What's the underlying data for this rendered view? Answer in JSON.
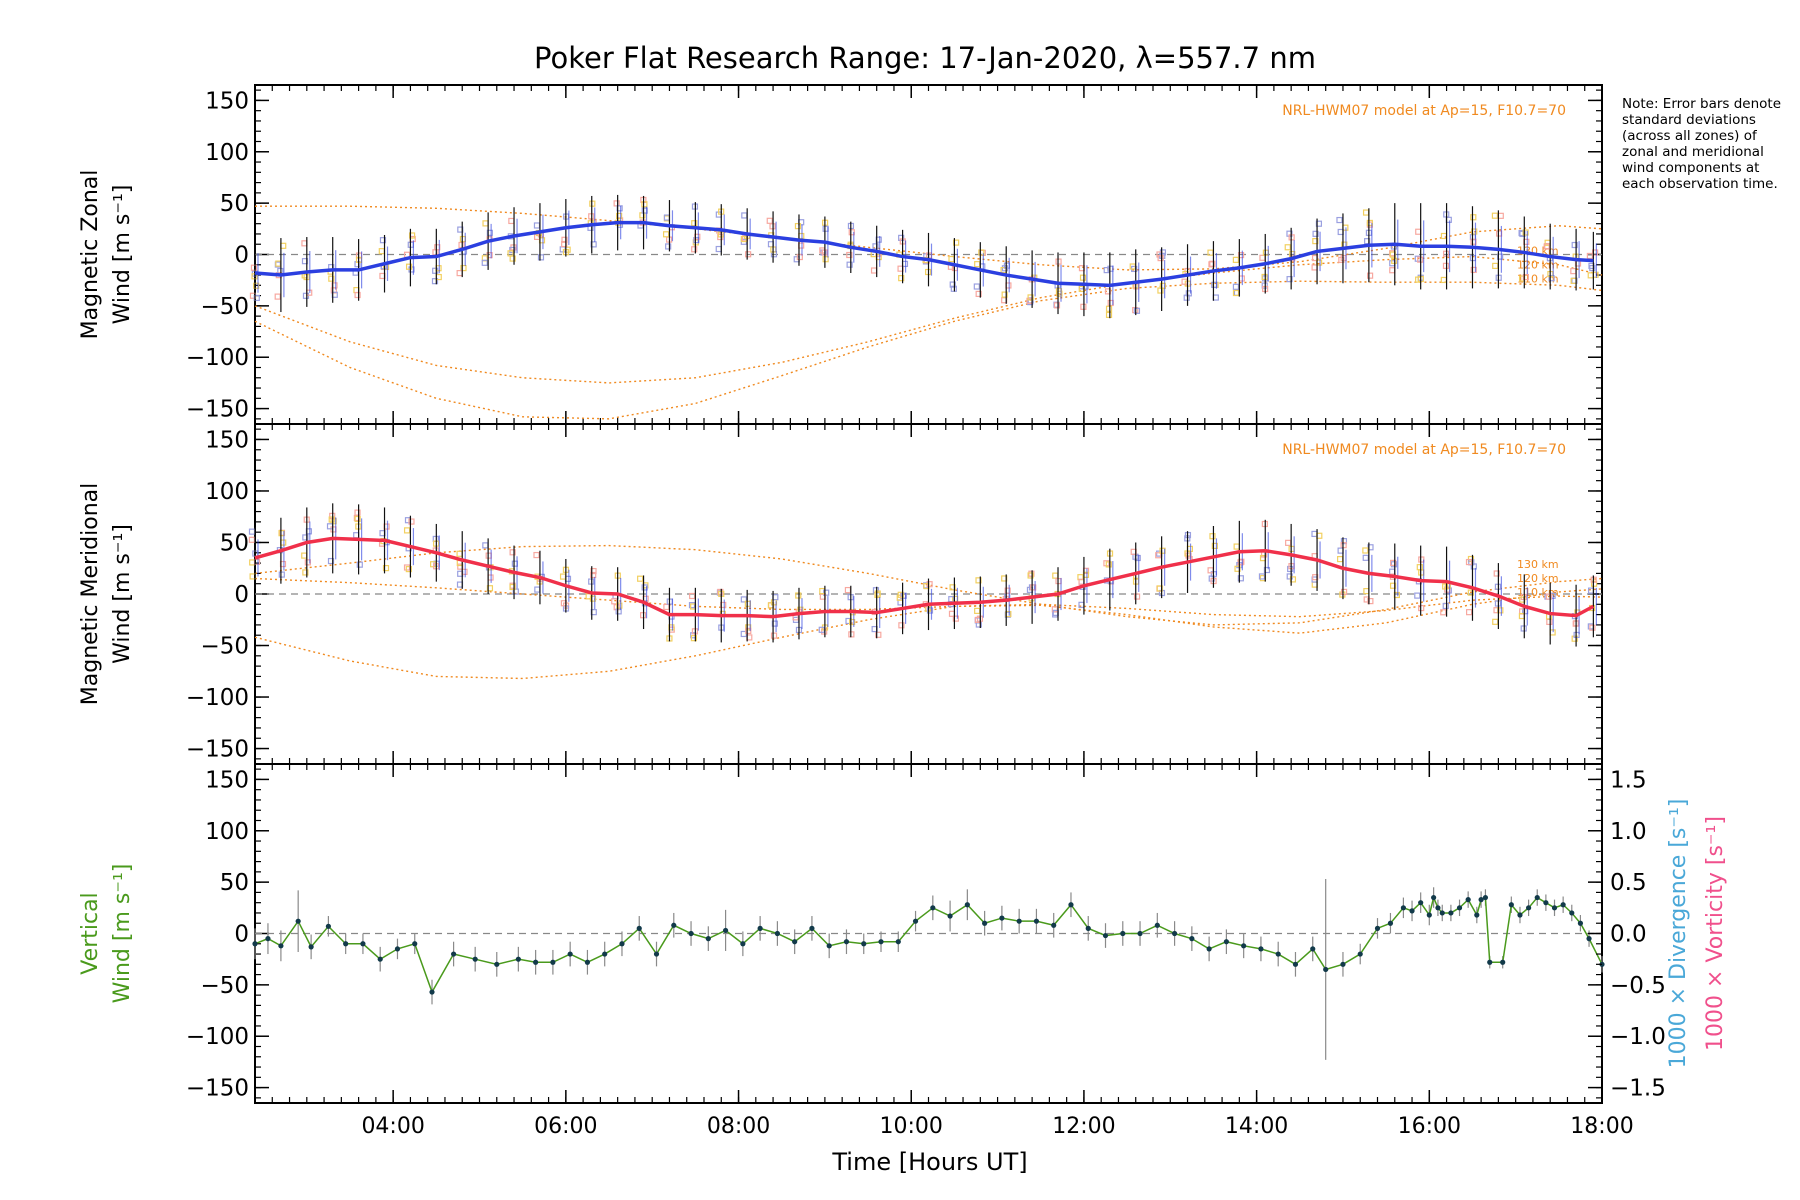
{
  "title": "Poker Flat Research Range: 17-Jan-2020, λ=557.7 nm",
  "note": "Note: Error bars denote standard deviations (across all zones) of zonal and meridional wind components at each observation time.",
  "xlabel": "Time [Hours UT]",
  "colors": {
    "zonal_mean": "#2b3fe0",
    "meridional_mean": "#f0304a",
    "vertical": "#4a9a1c",
    "model": "#f08a20",
    "samples": "#9aa0e0",
    "samples_warm": "#f7a8a0",
    "samples_yellow": "#f2d060",
    "divergence_label": "#4aa8d8",
    "vorticity_label": "#f0508c",
    "zero_line": "#888888",
    "error_bar": "#111111"
  },
  "chart_data": [
    {
      "type": "line",
      "panel": "zonal",
      "ylabel_line1": "Magnetic Zonal",
      "ylabel_line2": "Wind [m s⁻¹]",
      "model_label": "NRL-HWM07 model at Ap=15, F10.7=70",
      "model_altitude_labels": [
        "130 km",
        "120 km",
        "110 km"
      ],
      "xlim": [
        2.4,
        18.0
      ],
      "ylim": [
        -165,
        165
      ],
      "yticks": [
        -150,
        -100,
        -50,
        0,
        50,
        100,
        150
      ],
      "xticks": [
        4,
        6,
        8,
        10,
        12,
        14,
        16,
        18
      ],
      "xtick_labels": [
        "04:00",
        "06:00",
        "08:00",
        "10:00",
        "12:00",
        "14:00",
        "16:00",
        "18:00"
      ],
      "series": [
        {
          "role": "mean",
          "x": [
            2.4,
            2.7,
            3.0,
            3.3,
            3.6,
            3.9,
            4.2,
            4.5,
            4.8,
            5.1,
            5.4,
            5.7,
            6.0,
            6.3,
            6.6,
            6.9,
            7.2,
            7.5,
            7.8,
            8.1,
            8.4,
            8.7,
            9.0,
            9.3,
            9.6,
            9.9,
            10.2,
            10.5,
            10.8,
            11.1,
            11.4,
            11.7,
            12.0,
            12.3,
            12.6,
            12.9,
            13.2,
            13.5,
            13.8,
            14.1,
            14.4,
            14.7,
            15.0,
            15.3,
            15.6,
            15.9,
            16.2,
            16.5,
            16.8,
            17.1,
            17.4,
            17.7,
            17.9
          ],
          "y": [
            -18,
            -20,
            -17,
            -15,
            -15,
            -9,
            -3,
            -2,
            5,
            13,
            18,
            22,
            26,
            29,
            31,
            31,
            28,
            26,
            24,
            20,
            17,
            14,
            12,
            7,
            3,
            -2,
            -5,
            -10,
            -15,
            -20,
            -24,
            -28,
            -29,
            -30,
            -27,
            -24,
            -20,
            -16,
            -13,
            -9,
            -4,
            3,
            6,
            9,
            10,
            8,
            8,
            7,
            5,
            2,
            -2,
            -5,
            -6
          ],
          "err": [
            32,
            36,
            34,
            32,
            30,
            28,
            28,
            27,
            27,
            28,
            28,
            28,
            28,
            28,
            27,
            26,
            25,
            25,
            25,
            25,
            25,
            25,
            25,
            25,
            25,
            26,
            26,
            26,
            27,
            28,
            28,
            30,
            31,
            32,
            32,
            31,
            30,
            29,
            28,
            29,
            30,
            32,
            34,
            36,
            40,
            42,
            42,
            40,
            38,
            35,
            32,
            30,
            28
          ]
        },
        {
          "role": "model",
          "name": "130 km",
          "x": [
            2.4,
            3.5,
            4.5,
            5.5,
            6.5,
            7.5,
            8.5,
            9.5,
            10.5,
            11.5,
            12.5,
            13.5,
            14.5,
            15.5,
            16.5,
            17.5,
            18.0
          ],
          "y": [
            47,
            47,
            45,
            40,
            33,
            25,
            16,
            7,
            -2,
            -10,
            -15,
            -14,
            -7,
            6,
            22,
            28,
            25
          ]
        },
        {
          "role": "model",
          "name": "120 km",
          "x": [
            2.4,
            3.5,
            4.5,
            5.5,
            6.5,
            7.5,
            8.5,
            9.5,
            10.5,
            11.5,
            12.5,
            13.5,
            14.5,
            15.5,
            16.5,
            17.5,
            18.0
          ],
          "y": [
            -50,
            -85,
            -108,
            -120,
            -125,
            -120,
            -105,
            -85,
            -62,
            -42,
            -28,
            -18,
            -10,
            -5,
            -2,
            -10,
            -20
          ]
        },
        {
          "role": "model",
          "name": "110 km",
          "x": [
            2.4,
            3.5,
            4.5,
            5.5,
            6.5,
            7.5,
            8.5,
            9.5,
            10.5,
            11.5,
            12.5,
            13.5,
            14.5,
            15.5,
            16.5,
            17.5,
            18.0
          ],
          "y": [
            -65,
            -110,
            -140,
            -158,
            -160,
            -145,
            -118,
            -90,
            -65,
            -45,
            -33,
            -28,
            -26,
            -27,
            -27,
            -30,
            -35
          ]
        }
      ]
    },
    {
      "type": "line",
      "panel": "meridional",
      "ylabel_line1": "Magnetic Meridional",
      "ylabel_line2": "Wind [m s⁻¹]",
      "model_label": "NRL-HWM07 model at Ap=15, F10.7=70",
      "model_altitude_labels": [
        "130 km",
        "120 km",
        "110 km"
      ],
      "xlim": [
        2.4,
        18.0
      ],
      "ylim": [
        -165,
        165
      ],
      "yticks": [
        -150,
        -100,
        -50,
        0,
        50,
        100,
        150
      ],
      "xticks": [
        4,
        6,
        8,
        10,
        12,
        14,
        16,
        18
      ],
      "xtick_labels": [
        "04:00",
        "06:00",
        "08:00",
        "10:00",
        "12:00",
        "14:00",
        "16:00",
        "18:00"
      ],
      "series": [
        {
          "role": "mean",
          "x": [
            2.4,
            2.7,
            3.0,
            3.3,
            3.6,
            3.9,
            4.2,
            4.5,
            4.8,
            5.1,
            5.4,
            5.7,
            6.0,
            6.3,
            6.6,
            6.9,
            7.2,
            7.5,
            7.8,
            8.1,
            8.4,
            8.7,
            9.0,
            9.3,
            9.6,
            9.9,
            10.2,
            10.5,
            10.8,
            11.1,
            11.4,
            11.7,
            12.0,
            12.3,
            12.6,
            12.9,
            13.2,
            13.5,
            13.8,
            14.1,
            14.4,
            14.7,
            15.0,
            15.3,
            15.6,
            15.9,
            16.2,
            16.5,
            16.8,
            17.1,
            17.4,
            17.7,
            17.9
          ],
          "y": [
            35,
            42,
            50,
            54,
            53,
            52,
            46,
            40,
            33,
            27,
            21,
            16,
            8,
            1,
            0,
            -8,
            -20,
            -20,
            -21,
            -21,
            -22,
            -19,
            -17,
            -17,
            -18,
            -14,
            -10,
            -9,
            -8,
            -6,
            -3,
            0,
            8,
            14,
            20,
            26,
            31,
            36,
            41,
            42,
            38,
            33,
            25,
            20,
            17,
            13,
            12,
            6,
            -2,
            -12,
            -19,
            -21,
            -12
          ],
          "err": [
            30,
            32,
            34,
            34,
            34,
            32,
            30,
            28,
            28,
            27,
            26,
            26,
            26,
            26,
            26,
            26,
            26,
            26,
            26,
            25,
            25,
            25,
            25,
            25,
            25,
            25,
            25,
            25,
            25,
            25,
            26,
            26,
            28,
            30,
            30,
            30,
            30,
            30,
            30,
            30,
            30,
            30,
            30,
            30,
            32,
            34,
            34,
            32,
            32,
            31,
            30,
            30,
            30
          ]
        },
        {
          "role": "model",
          "name": "130 km",
          "x": [
            2.4,
            3.5,
            4.5,
            5.5,
            6.5,
            7.5,
            8.5,
            9.5,
            10.5,
            11.5,
            12.5,
            13.5,
            14.5,
            15.5,
            16.5,
            17.5,
            18.0
          ],
          "y": [
            20,
            30,
            40,
            46,
            47,
            43,
            34,
            20,
            4,
            -10,
            -22,
            -30,
            -28,
            -15,
            2,
            12,
            15
          ]
        },
        {
          "role": "model",
          "name": "120 km",
          "x": [
            2.4,
            3.5,
            4.5,
            5.5,
            6.5,
            7.5,
            8.5,
            9.5,
            10.5,
            11.5,
            12.5,
            13.5,
            14.5,
            15.5,
            16.5,
            17.5,
            18.0
          ],
          "y": [
            15,
            11,
            6,
            0,
            -6,
            -12,
            -15,
            -15,
            -12,
            -11,
            -20,
            -32,
            -38,
            -28,
            -10,
            2,
            5
          ]
        },
        {
          "role": "model",
          "name": "110 km",
          "x": [
            2.4,
            3.5,
            4.5,
            5.5,
            6.5,
            7.5,
            8.5,
            9.5,
            10.5,
            11.5,
            12.5,
            13.5,
            14.5,
            15.5,
            16.5,
            17.5,
            18.0
          ],
          "y": [
            -42,
            -65,
            -80,
            -82,
            -75,
            -60,
            -42,
            -25,
            -12,
            -10,
            -14,
            -20,
            -22,
            -16,
            -6,
            -2,
            -3
          ]
        }
      ]
    },
    {
      "type": "line",
      "panel": "vertical",
      "ylabel_line1": "Vertical",
      "ylabel_line2": "Wind [m s⁻¹]",
      "right_label_divergence": "1000 × Divergence [s⁻¹]",
      "right_label_vorticity": "1000 × Vorticity [s⁻¹]",
      "xlim": [
        2.4,
        18.0
      ],
      "ylim": [
        -165,
        165
      ],
      "yticks": [
        -150,
        -100,
        -50,
        0,
        50,
        100,
        150
      ],
      "right_ylim": [
        -1.65,
        1.65
      ],
      "right_yticks": [
        -1.5,
        -1.0,
        -0.5,
        0.0,
        0.5,
        1.0,
        1.5
      ],
      "xticks": [
        4,
        6,
        8,
        10,
        12,
        14,
        16,
        18
      ],
      "xtick_labels": [
        "04:00",
        "06:00",
        "08:00",
        "10:00",
        "12:00",
        "14:00",
        "16:00",
        "18:00"
      ],
      "series": [
        {
          "role": "vertical",
          "x": [
            2.4,
            2.55,
            2.7,
            2.9,
            3.05,
            3.25,
            3.45,
            3.65,
            3.85,
            4.05,
            4.25,
            4.45,
            4.7,
            4.95,
            5.2,
            5.45,
            5.65,
            5.85,
            6.05,
            6.25,
            6.45,
            6.65,
            6.85,
            7.05,
            7.25,
            7.45,
            7.65,
            7.85,
            8.05,
            8.25,
            8.45,
            8.65,
            8.85,
            9.05,
            9.25,
            9.45,
            9.65,
            9.85,
            10.05,
            10.25,
            10.45,
            10.65,
            10.85,
            11.05,
            11.25,
            11.45,
            11.65,
            11.85,
            12.05,
            12.25,
            12.45,
            12.65,
            12.85,
            13.05,
            13.25,
            13.45,
            13.65,
            13.85,
            14.05,
            14.25,
            14.45,
            14.65,
            14.8,
            15.0,
            15.2,
            15.4,
            15.55,
            15.7,
            15.8,
            15.9,
            16.0,
            16.05,
            16.1,
            16.15,
            16.25,
            16.35,
            16.45,
            16.55,
            16.6,
            16.65,
            16.7,
            16.85,
            16.95,
            17.05,
            17.15,
            17.25,
            17.35,
            17.45,
            17.55,
            17.65,
            17.75,
            17.85,
            18.0
          ],
          "y": [
            -10,
            -5,
            -12,
            12,
            -13,
            7,
            -10,
            -10,
            -25,
            -15,
            -10,
            -57,
            -20,
            -25,
            -30,
            -25,
            -28,
            -28,
            -20,
            -28,
            -20,
            -10,
            5,
            -20,
            8,
            0,
            -5,
            3,
            -10,
            5,
            0,
            -8,
            5,
            -12,
            -8,
            -10,
            -8,
            -8,
            12,
            25,
            17,
            28,
            10,
            15,
            12,
            12,
            8,
            28,
            5,
            -2,
            0,
            0,
            8,
            0,
            -5,
            -15,
            -8,
            -12,
            -15,
            -20,
            -30,
            -15,
            -35,
            -30,
            -20,
            5,
            10,
            25,
            22,
            30,
            18,
            35,
            25,
            20,
            20,
            25,
            33,
            18,
            33,
            35,
            -28,
            -28,
            28,
            18,
            25,
            35,
            30,
            25,
            28,
            20,
            10,
            -5,
            -30
          ],
          "err": [
            15,
            15,
            15,
            30,
            12,
            10,
            10,
            10,
            12,
            10,
            10,
            12,
            12,
            12,
            12,
            12,
            12,
            12,
            12,
            12,
            12,
            12,
            12,
            12,
            12,
            12,
            12,
            20,
            12,
            12,
            12,
            12,
            12,
            12,
            12,
            10,
            10,
            10,
            10,
            12,
            15,
            15,
            12,
            12,
            12,
            12,
            12,
            12,
            12,
            12,
            12,
            12,
            12,
            12,
            12,
            12,
            12,
            12,
            12,
            12,
            12,
            12,
            88,
            12,
            10,
            10,
            10,
            10,
            10,
            10,
            10,
            10,
            8,
            8,
            8,
            8,
            8,
            8,
            8,
            8,
            6,
            6,
            8,
            8,
            8,
            8,
            8,
            8,
            8,
            8,
            8,
            8,
            8
          ]
        }
      ]
    }
  ]
}
